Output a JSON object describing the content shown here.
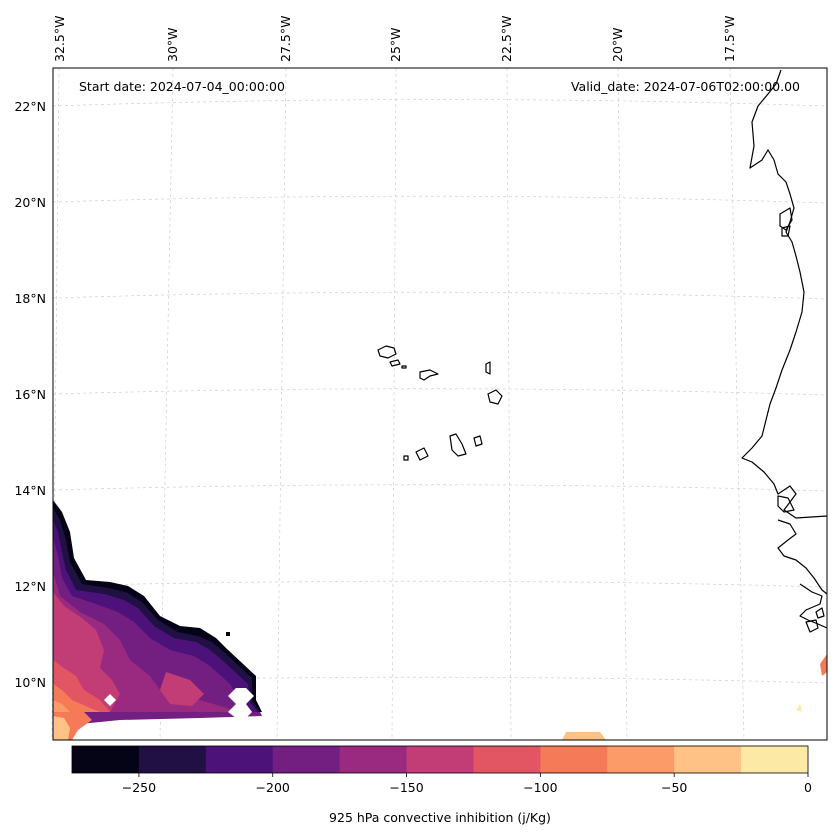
{
  "map": {
    "start_date": "Start date: 2024-07-04_00:00:00",
    "valid_date": "Valid_date: 2024-07-06T02:00:00.00",
    "longitude_labels": [
      "32.5°W",
      "30°W",
      "27.5°W",
      "25°W",
      "22.5°W",
      "20°W",
      "17.5°W"
    ],
    "latitude_labels": [
      "22°N",
      "20°N",
      "18°N",
      "16°N",
      "14°N",
      "12°N",
      "10°N"
    ],
    "variable": "925 hPa convective inhibition (j/Kg)",
    "region_shown": "Cape Verde islands and West African coast",
    "field_colors": {
      "cin_m250_m275": "#050416",
      "cin_m225_m250": "#211044",
      "cin_m200_m225": "#4d1279",
      "cin_m175_m200": "#731f81",
      "cin_m150_m175": "#9a2a7f",
      "cin_m125_m150": "#c23c75",
      "cin_m100_m125": "#e25563",
      "cin_m75_m100": "#f57a57",
      "cin_m50_m75": "#fc9b67",
      "cin_m25_m50": "#fec287",
      "cin_0_m25": "#fde9a6"
    }
  },
  "colorbar": {
    "tick_labels": [
      "−250",
      "−200",
      "−150",
      "−100",
      "−50",
      "0"
    ],
    "label": "925 hPa convective inhibition (j/Kg)",
    "colors": [
      "#050416",
      "#211044",
      "#4d1279",
      "#731f81",
      "#9a2a7f",
      "#c23c75",
      "#e25563",
      "#f57a57",
      "#fc9b67",
      "#fec287",
      "#fde9a6"
    ],
    "range": [
      -275,
      0
    ]
  }
}
